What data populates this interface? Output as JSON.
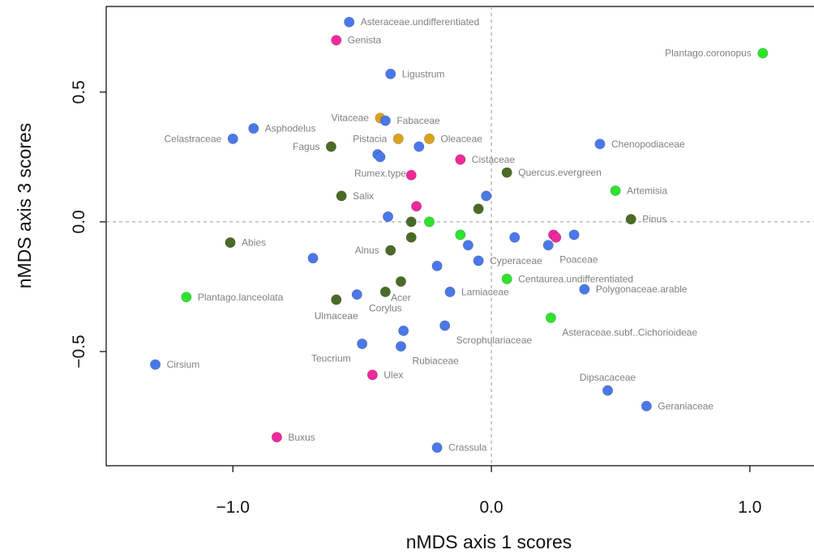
{
  "chart_data": {
    "type": "scatter",
    "title": "",
    "xlabel": "nMDS axis 1 scores",
    "ylabel": "nMDS axis 3 scores",
    "xlim": [
      -1.49,
      1.27
    ],
    "ylim": [
      -0.94,
      0.83
    ],
    "xticks": [
      {
        "value": -1.0,
        "label": "−1.0"
      },
      {
        "value": 0.0,
        "label": "0.0"
      },
      {
        "value": 1.0,
        "label": "1.0"
      }
    ],
    "yticks": [
      {
        "value": -0.5,
        "label": "−0.5"
      },
      {
        "value": 0.0,
        "label": "0.0"
      },
      {
        "value": 0.5,
        "label": "0.5"
      }
    ],
    "reference_lines": {
      "x": 0,
      "y": 0,
      "style": "dashed"
    },
    "grid": false,
    "legend": "none",
    "group_colors": {
      "blue": "#4a78e8",
      "pink": "#ee2a9c",
      "darkgreen": "#4a6b26",
      "gold": "#d9a21b",
      "green": "#2ee32e"
    },
    "points": [
      {
        "x": -0.55,
        "y": 0.77,
        "g": "blue",
        "label": "Asteraceae.undifferentiated"
      },
      {
        "x": -0.6,
        "y": 0.7,
        "g": "pink",
        "label": "Genista"
      },
      {
        "x": 1.05,
        "y": 0.65,
        "g": "green",
        "label": "Plantago.coronopus"
      },
      {
        "x": -0.39,
        "y": 0.57,
        "g": "blue",
        "label": "Ligustrum"
      },
      {
        "x": -0.92,
        "y": 0.36,
        "g": "blue",
        "label": "Asphodelus"
      },
      {
        "x": -0.43,
        "y": 0.4,
        "g": "gold",
        "label": "Vitaceae"
      },
      {
        "x": -0.41,
        "y": 0.39,
        "g": "blue",
        "label": "Fabaceae"
      },
      {
        "x": -1.0,
        "y": 0.32,
        "g": "blue",
        "label": "Celastraceae"
      },
      {
        "x": -0.36,
        "y": 0.32,
        "g": "gold",
        "label": "Pistacia"
      },
      {
        "x": -0.24,
        "y": 0.32,
        "g": "gold",
        "label": "Oleaceae"
      },
      {
        "x": 0.42,
        "y": 0.3,
        "g": "blue",
        "label": "Chenopodiaceae"
      },
      {
        "x": -0.62,
        "y": 0.29,
        "g": "darkgreen",
        "label": "Fagus"
      },
      {
        "x": -0.28,
        "y": 0.29,
        "g": "blue",
        "label": ""
      },
      {
        "x": -0.44,
        "y": 0.26,
        "g": "blue",
        "label": ""
      },
      {
        "x": -0.43,
        "y": 0.25,
        "g": "blue",
        "label": "Rumex.type"
      },
      {
        "x": -0.12,
        "y": 0.24,
        "g": "pink",
        "label": "Cistaceae"
      },
      {
        "x": 0.06,
        "y": 0.19,
        "g": "darkgreen",
        "label": "Quercus.evergreen"
      },
      {
        "x": -0.31,
        "y": 0.18,
        "g": "pink",
        "label": ""
      },
      {
        "x": 0.48,
        "y": 0.12,
        "g": "green",
        "label": "Artemisia"
      },
      {
        "x": -0.58,
        "y": 0.1,
        "g": "darkgreen",
        "label": "Salix"
      },
      {
        "x": -0.02,
        "y": 0.1,
        "g": "blue",
        "label": ""
      },
      {
        "x": -0.29,
        "y": 0.06,
        "g": "pink",
        "label": ""
      },
      {
        "x": -0.05,
        "y": 0.05,
        "g": "darkgreen",
        "label": ""
      },
      {
        "x": -0.4,
        "y": 0.02,
        "g": "blue",
        "label": ""
      },
      {
        "x": 0.54,
        "y": 0.01,
        "g": "darkgreen",
        "label": "Pinus"
      },
      {
        "x": -0.31,
        "y": 0.0,
        "g": "darkgreen",
        "label": ""
      },
      {
        "x": -0.24,
        "y": 0.0,
        "g": "green",
        "label": ""
      },
      {
        "x": -0.12,
        "y": -0.05,
        "g": "green",
        "label": ""
      },
      {
        "x": 0.24,
        "y": -0.05,
        "g": "pink",
        "label": ""
      },
      {
        "x": 0.25,
        "y": -0.06,
        "g": "pink",
        "label": ""
      },
      {
        "x": 0.32,
        "y": -0.05,
        "g": "blue",
        "label": ""
      },
      {
        "x": 0.09,
        "y": -0.06,
        "g": "blue",
        "label": ""
      },
      {
        "x": -0.31,
        "y": -0.06,
        "g": "darkgreen",
        "label": ""
      },
      {
        "x": 0.22,
        "y": -0.09,
        "g": "blue",
        "label": "Poaceae"
      },
      {
        "x": -0.09,
        "y": -0.09,
        "g": "blue",
        "label": ""
      },
      {
        "x": -1.01,
        "y": -0.08,
        "g": "darkgreen",
        "label": "Abies"
      },
      {
        "x": -0.39,
        "y": -0.11,
        "g": "darkgreen",
        "label": "Alnus"
      },
      {
        "x": -0.69,
        "y": -0.14,
        "g": "blue",
        "label": ""
      },
      {
        "x": -0.05,
        "y": -0.15,
        "g": "blue",
        "label": "Cyperaceae"
      },
      {
        "x": -0.21,
        "y": -0.17,
        "g": "blue",
        "label": ""
      },
      {
        "x": 0.06,
        "y": -0.22,
        "g": "green",
        "label": "Centaurea.undifferentiated"
      },
      {
        "x": -0.35,
        "y": -0.23,
        "g": "darkgreen",
        "label": "Acer"
      },
      {
        "x": 0.36,
        "y": -0.26,
        "g": "blue",
        "label": "Polygonaceae.arable"
      },
      {
        "x": -0.41,
        "y": -0.27,
        "g": "darkgreen",
        "label": "Corylus"
      },
      {
        "x": -0.16,
        "y": -0.27,
        "g": "blue",
        "label": "Lamiaceae"
      },
      {
        "x": -1.18,
        "y": -0.29,
        "g": "green",
        "label": "Plantago.lanceolata"
      },
      {
        "x": -0.52,
        "y": -0.28,
        "g": "blue",
        "label": ""
      },
      {
        "x": -0.6,
        "y": -0.3,
        "g": "darkgreen",
        "label": "Ulmaceae"
      },
      {
        "x": 0.23,
        "y": -0.37,
        "g": "green",
        "label": "Asteraceae.subf..Cichorioideae"
      },
      {
        "x": -0.18,
        "y": -0.4,
        "g": "blue",
        "label": "Scrophulariaceae"
      },
      {
        "x": -0.34,
        "y": -0.42,
        "g": "blue",
        "label": ""
      },
      {
        "x": -0.5,
        "y": -0.47,
        "g": "blue",
        "label": "Teucrium"
      },
      {
        "x": -0.35,
        "y": -0.48,
        "g": "blue",
        "label": "Rubiaceae"
      },
      {
        "x": -1.3,
        "y": -0.55,
        "g": "blue",
        "label": "Cirsium"
      },
      {
        "x": -0.46,
        "y": -0.59,
        "g": "pink",
        "label": "Ulex"
      },
      {
        "x": 0.45,
        "y": -0.65,
        "g": "blue",
        "label": "Dipsacaceae"
      },
      {
        "x": 0.6,
        "y": -0.71,
        "g": "blue",
        "label": "Geraniaceae"
      },
      {
        "x": -0.83,
        "y": -0.83,
        "g": "pink",
        "label": "Buxus"
      },
      {
        "x": -0.21,
        "y": -0.87,
        "g": "blue",
        "label": "Crassula"
      }
    ],
    "label_placement": [
      "r",
      "r",
      "l",
      "r",
      "r",
      "l",
      "r",
      "l",
      "l",
      "r",
      "r",
      "l",
      "n",
      "n",
      "b",
      "r",
      "r",
      "n",
      "r",
      "r",
      "n",
      "n",
      "n",
      "n",
      "r",
      "n",
      "n",
      "n",
      "n",
      "n",
      "n",
      "n",
      "n",
      "br",
      "n",
      "r",
      "l",
      "n",
      "r",
      "n",
      "r",
      "b",
      "r",
      "b",
      "r",
      "r",
      "n",
      "b",
      "br",
      "br",
      "n",
      "bl",
      "br",
      "r",
      "r",
      "t",
      "r",
      "r",
      "r"
    ]
  }
}
